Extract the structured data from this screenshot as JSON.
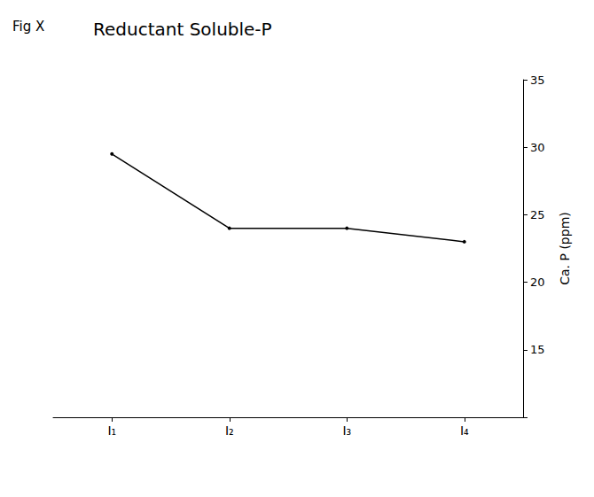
{
  "chart_data": {
    "type": "line",
    "title": "Reductant Soluble-P",
    "annotations": [
      "Fig X"
    ],
    "y_label": "Ca. P (ppm)",
    "categories": [
      "I₁",
      "I₂",
      "I₃",
      "I₄"
    ],
    "values": [
      29.5,
      24,
      24,
      23
    ],
    "color": "#000000",
    "marker": "circle",
    "ylim": [
      10,
      35
    ],
    "yticks": [
      15,
      20,
      25,
      30,
      35
    ],
    "grid": false
  }
}
